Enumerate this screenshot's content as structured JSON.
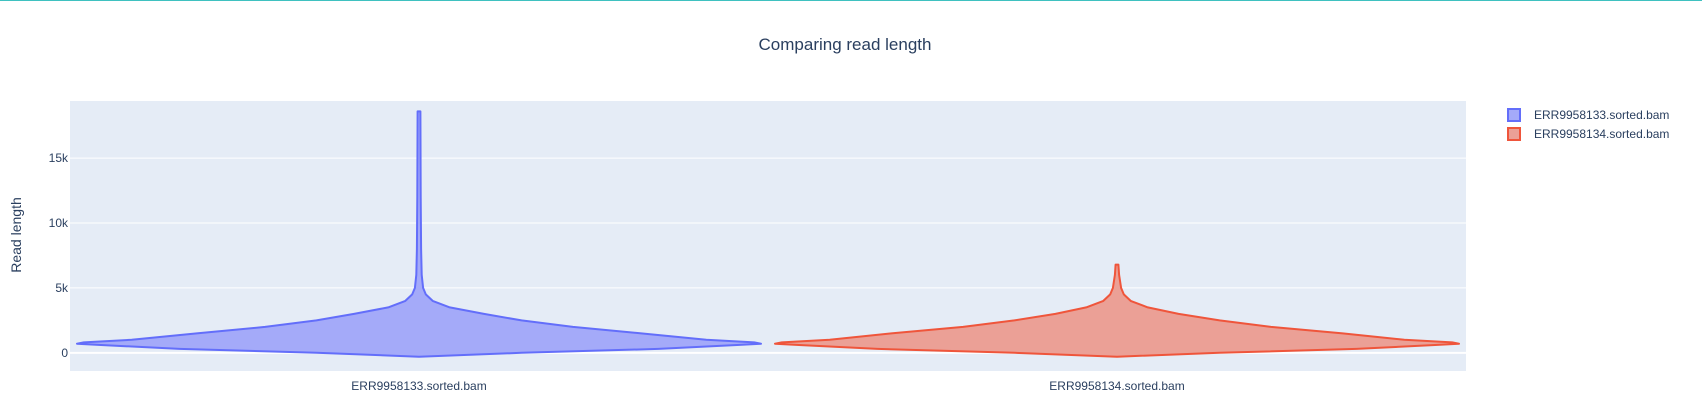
{
  "chart_data": {
    "type": "violin",
    "title": "Comparing read length",
    "xlabel": "",
    "ylabel": "Read length",
    "ylim": [
      -1400,
      19400
    ],
    "y_ticks": [
      {
        "value": 0,
        "label": "0"
      },
      {
        "value": 5000,
        "label": "5k"
      },
      {
        "value": 10000,
        "label": "10k"
      },
      {
        "value": 15000,
        "label": "15k"
      }
    ],
    "categories": [
      "ERR9958133.sorted.bam",
      "ERR9958134.sorted.bam"
    ],
    "grid": true,
    "legend_position": "top-right",
    "series": [
      {
        "name": "ERR9958133.sorted.bam",
        "category": "ERR9958133.sorted.bam",
        "line_color": "#636efa",
        "fill_color": "#a4aaf9",
        "min": -300,
        "max": 18600,
        "density_profile": [
          [
            -300,
            0.0
          ],
          [
            0,
            0.3
          ],
          [
            300,
            0.7
          ],
          [
            600,
            0.93
          ],
          [
            700,
            1.0
          ],
          [
            800,
            0.98
          ],
          [
            1000,
            0.84
          ],
          [
            1500,
            0.65
          ],
          [
            2000,
            0.45
          ],
          [
            2500,
            0.3
          ],
          [
            3000,
            0.19
          ],
          [
            3500,
            0.09
          ],
          [
            4000,
            0.04
          ],
          [
            4500,
            0.02
          ],
          [
            5000,
            0.012
          ],
          [
            6000,
            0.008
          ],
          [
            8000,
            0.006
          ],
          [
            12000,
            0.005
          ],
          [
            18600,
            0.004
          ]
        ]
      },
      {
        "name": "ERR9958134.sorted.bam",
        "category": "ERR9958134.sorted.bam",
        "line_color": "#ef553b",
        "fill_color": "#eba096",
        "min": -300,
        "max": 6800,
        "density_profile": [
          [
            -300,
            0.0
          ],
          [
            0,
            0.3
          ],
          [
            300,
            0.7
          ],
          [
            600,
            0.93
          ],
          [
            700,
            1.0
          ],
          [
            800,
            0.98
          ],
          [
            1000,
            0.84
          ],
          [
            1500,
            0.66
          ],
          [
            2000,
            0.45
          ],
          [
            2500,
            0.3
          ],
          [
            3000,
            0.18
          ],
          [
            3500,
            0.09
          ],
          [
            4000,
            0.04
          ],
          [
            4500,
            0.02
          ],
          [
            5000,
            0.012
          ],
          [
            6000,
            0.006
          ],
          [
            6800,
            0.004
          ]
        ]
      }
    ]
  }
}
